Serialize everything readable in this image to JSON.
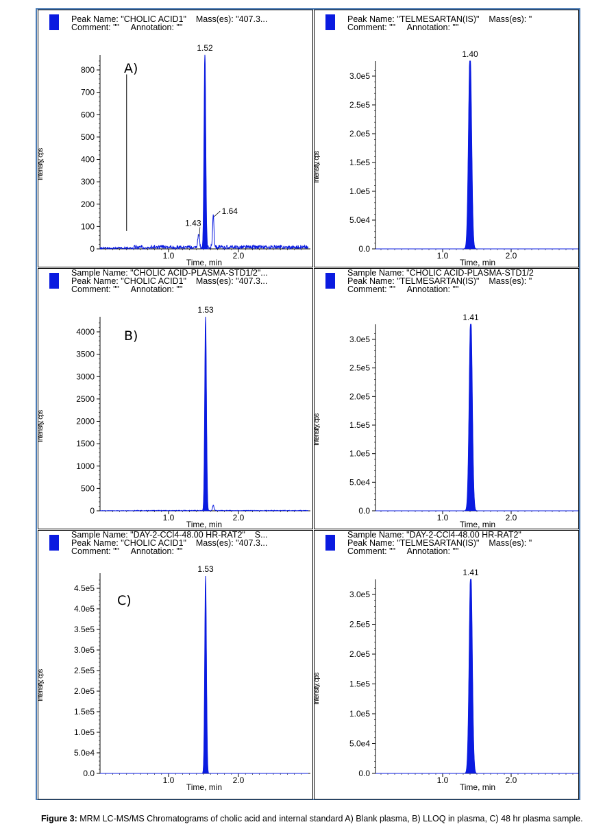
{
  "caption": {
    "label": "Figure 3:",
    "text": " MRM LC-MS/MS Chromatograms of cholic acid and internal standard A) Blank plasma, B) LLOQ in plasma, C) 48 hr plasma sample."
  },
  "colors": {
    "trace": "#0a1be0",
    "frame": "#4a7bb5"
  },
  "panels": [
    {
      "tag": "A)",
      "header": [
        "Peak Name: \"CHOLIC ACID1\"    Mass(es): \"407.3...",
        "Comment: \"\"     Annotation: \"\""
      ],
      "ylabel": "Intensity, cps",
      "xlabel": "Time, min"
    },
    {
      "tag": "",
      "header": [
        "Peak Name: \"TELMESARTAN(IS)\"    Mass(es): \"",
        "Comment: \"\"     Annotation: \"\""
      ],
      "ylabel": "Intensity, cps",
      "xlabel": "Time, min"
    },
    {
      "tag": "B)",
      "header": [
        "Sample Name: \"CHOLIC ACID-PLASMA-STD1/2\"...",
        "Peak Name: \"CHOLIC ACID1\"    Mass(es): \"407.3...",
        "Comment: \"\"     Annotation: \"\""
      ],
      "ylabel": "Intensity, cps",
      "xlabel": "Time, min"
    },
    {
      "tag": "",
      "header": [
        "Sample Name: \"CHOLIC ACID-PLASMA-STD1/2",
        "Peak Name: \"TELMESARTAN(IS)\"    Mass(es): \"",
        "Comment: \"\"     Annotation: \"\""
      ],
      "ylabel": "Intensity, cps",
      "xlabel": "Time, min"
    },
    {
      "tag": "C)",
      "header": [
        "Sample Name: \"DAY-2-CCl4-48.00 HR-RAT2\"    S...",
        "Peak Name: \"CHOLIC ACID1\"    Mass(es): \"407.3...",
        "Comment: \"\"     Annotation: \"\""
      ],
      "ylabel": "Intensity, cps",
      "xlabel": "Time, min"
    },
    {
      "tag": "",
      "header": [
        "Sample Name: \"DAY-2-CCl4-48.00 HR-RAT2\"",
        "Peak Name: \"TELMESARTAN(IS)\"    Mass(es): \"",
        "Comment: \"\"     Annotation: \"\""
      ],
      "ylabel": "Intensity, cps",
      "xlabel": "Time, min"
    }
  ],
  "chart_data": [
    {
      "type": "line",
      "xlim": [
        0.02,
        3.0
      ],
      "ylim": [
        0,
        820
      ],
      "xticks": [
        1.0,
        2.0
      ],
      "xtick_labels": [
        "1.0",
        "2.0"
      ],
      "yticks": [
        0,
        100,
        200,
        300,
        400,
        500,
        600,
        700,
        800
      ],
      "ytick_labels": [
        "0",
        "100",
        "200",
        "300",
        "400",
        "500",
        "600",
        "700",
        "800"
      ],
      "peaks": [
        {
          "x": 1.52,
          "height": 880,
          "width": 0.012,
          "label": "1.52"
        },
        {
          "x": 1.43,
          "height": 60,
          "width": 0.012,
          "label": "1.43"
        },
        {
          "x": 1.64,
          "height": 150,
          "width": 0.01,
          "label": "1.64"
        }
      ],
      "noise": 25,
      "marker": {
        "x": 0.4,
        "y0": 80,
        "y1": 780
      }
    },
    {
      "type": "line",
      "xlim": [
        0.02,
        3.0
      ],
      "ylim": [
        0,
        345000
      ],
      "xticks": [
        1.0,
        2.0
      ],
      "xtick_labels": [
        "1.0",
        "2.0"
      ],
      "yticks": [
        0,
        50000,
        100000,
        150000,
        200000,
        250000,
        300000
      ],
      "ytick_labels": [
        "0.0",
        "5.0e4",
        "1.0e5",
        "1.5e5",
        "2.0e5",
        "2.5e5",
        "3.0e5"
      ],
      "peaks": [
        {
          "x": 1.4,
          "height": 345000,
          "width": 0.022,
          "label": "1.40"
        }
      ],
      "noise": 0
    },
    {
      "type": "line",
      "xlim": [
        0.02,
        3.0
      ],
      "ylim": [
        0,
        4200
      ],
      "xticks": [
        1.0,
        2.0
      ],
      "xtick_labels": [
        "1.0",
        "2.0"
      ],
      "yticks": [
        0,
        500,
        1000,
        1500,
        2000,
        2500,
        3000,
        3500,
        4000
      ],
      "ytick_labels": [
        "0",
        "500",
        "1000",
        "1500",
        "2000",
        "2500",
        "3000",
        "3500",
        "4000"
      ],
      "peaks": [
        {
          "x": 1.53,
          "height": 4350,
          "width": 0.012,
          "label": "1.53"
        },
        {
          "x": 1.64,
          "height": 120,
          "width": 0.01,
          "label": ""
        }
      ],
      "noise": 18
    },
    {
      "type": "line",
      "xlim": [
        0.02,
        3.0
      ],
      "ylim": [
        0,
        345000
      ],
      "xticks": [
        1.0,
        2.0
      ],
      "xtick_labels": [
        "1.0",
        "2.0"
      ],
      "yticks": [
        0,
        50000,
        100000,
        150000,
        200000,
        250000,
        300000
      ],
      "ytick_labels": [
        "0.0",
        "5.0e4",
        "1.0e5",
        "1.5e5",
        "2.0e5",
        "2.5e5",
        "3.0e5"
      ],
      "peaks": [
        {
          "x": 1.41,
          "height": 345000,
          "width": 0.022,
          "label": "1.41"
        }
      ],
      "noise": 0
    },
    {
      "type": "line",
      "xlim": [
        0.02,
        3.0
      ],
      "ylim": [
        0,
        470000
      ],
      "xticks": [
        1.0,
        2.0
      ],
      "xtick_labels": [
        "1.0",
        "2.0"
      ],
      "yticks": [
        0,
        50000,
        100000,
        150000,
        200000,
        250000,
        300000,
        350000,
        400000,
        450000
      ],
      "ytick_labels": [
        "0.0",
        "5.0e4",
        "1.0e5",
        "1.5e5",
        "2.0e5",
        "2.5e5",
        "3.0e5",
        "3.5e5",
        "4.0e5",
        "4.5e5"
      ],
      "peaks": [
        {
          "x": 1.53,
          "height": 480000,
          "width": 0.012,
          "label": "1.53"
        }
      ],
      "noise": 0
    },
    {
      "type": "line",
      "xlim": [
        0.02,
        3.0
      ],
      "ylim": [
        0,
        345000
      ],
      "xticks": [
        1.0,
        2.0
      ],
      "xtick_labels": [
        "1.0",
        "2.0"
      ],
      "yticks": [
        0,
        50000,
        100000,
        150000,
        200000,
        250000,
        300000
      ],
      "ytick_labels": [
        "0.0",
        "5.0e4",
        "1.0e5",
        "1.5e5",
        "2.0e5",
        "2.5e5",
        "3.0e5"
      ],
      "peaks": [
        {
          "x": 1.41,
          "height": 345000,
          "width": 0.022,
          "label": "1.41"
        }
      ],
      "noise": 0
    }
  ]
}
